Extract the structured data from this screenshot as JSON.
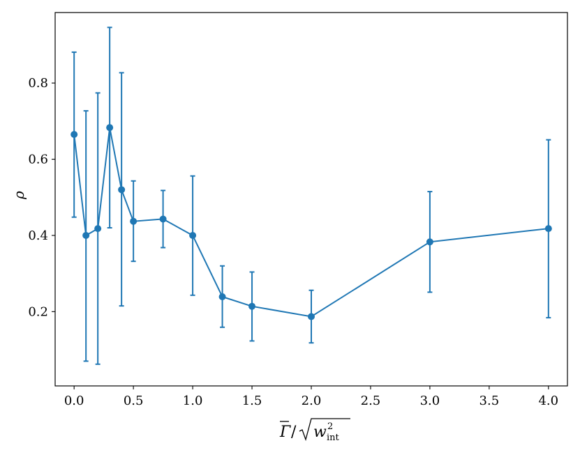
{
  "chart_data": {
    "type": "line",
    "title": "",
    "xlabel": "Γ̄ / √(w²_int)",
    "ylabel": "ρ",
    "xlim": [
      -0.16,
      4.16
    ],
    "ylim": [
      0.005,
      0.985
    ],
    "grid": false,
    "legend": "none",
    "x_ticks": [
      0.0,
      0.5,
      1.0,
      1.5,
      2.0,
      2.5,
      3.0,
      3.5,
      4.0
    ],
    "x_tick_labels": [
      "0.0",
      "0.5",
      "1.0",
      "1.5",
      "2.0",
      "2.5",
      "3.0",
      "3.5",
      "4.0"
    ],
    "y_ticks": [
      0.2,
      0.4,
      0.6,
      0.8
    ],
    "y_tick_labels": [
      "0.2",
      "0.4",
      "0.6",
      "0.8"
    ],
    "series": [
      {
        "color": "#1f77b4",
        "marker": "circle",
        "x": [
          0.0,
          0.1,
          0.2,
          0.3,
          0.4,
          0.5,
          0.75,
          1.0,
          1.25,
          1.5,
          2.0,
          3.0,
          4.0
        ],
        "y": [
          0.665,
          0.4,
          0.418,
          0.683,
          0.52,
          0.437,
          0.443,
          0.4,
          0.239,
          0.214,
          0.187,
          0.383,
          0.418
        ],
        "err_low": [
          0.448,
          0.07,
          0.062,
          0.42,
          0.215,
          0.332,
          0.368,
          0.243,
          0.159,
          0.123,
          0.118,
          0.251,
          0.184
        ],
        "err_high": [
          0.881,
          0.727,
          0.774,
          0.946,
          0.827,
          0.543,
          0.518,
          0.556,
          0.32,
          0.304,
          0.256,
          0.515,
          0.651
        ]
      }
    ]
  }
}
